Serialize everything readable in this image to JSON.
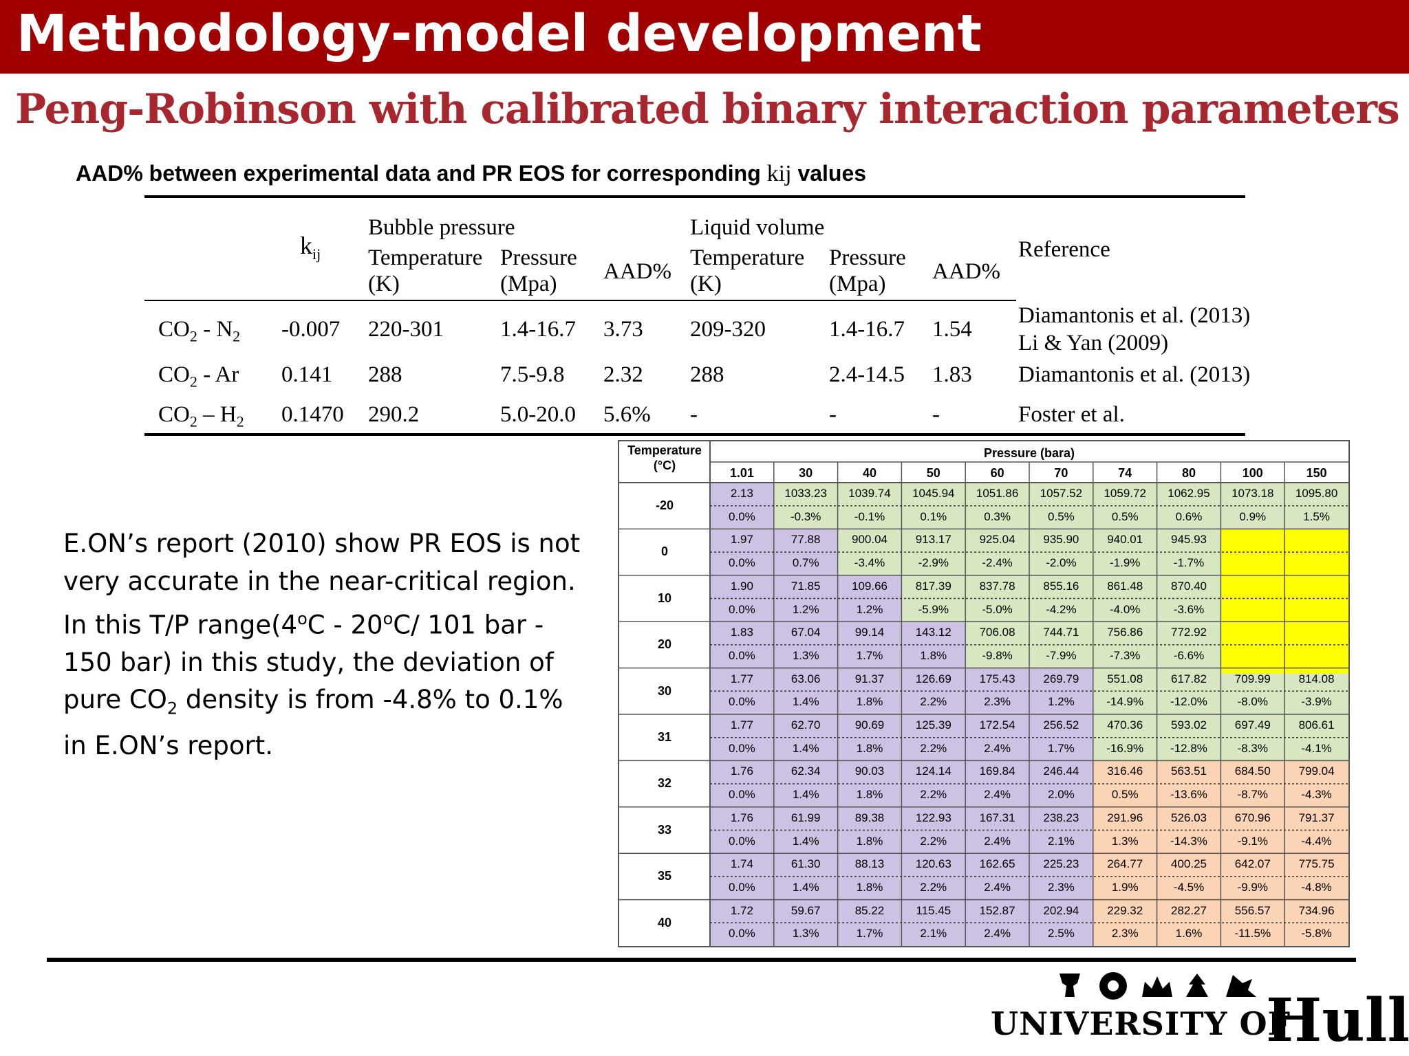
{
  "slide": {
    "title": "Methodology-model development",
    "subtitle": "Peng-Robinson with calibrated binary interaction parameters",
    "caption_prefix": "AAD% between experimental data and PR EOS for corresponding ",
    "caption_kij": "kij",
    "caption_suffix": " values"
  },
  "kij_table": {
    "col_kij": "k",
    "col_kij_sub": "ij",
    "group_bubble": "Bubble pressure",
    "group_liquid": "Liquid volume",
    "col_temp": "Temperature",
    "col_temp_unit": "(K)",
    "col_pres": "Pressure",
    "col_pres_unit": "(Mpa)",
    "col_aad": "AAD%",
    "col_ref": "Reference",
    "rows": [
      {
        "sys_a": "CO",
        "sys_a_sub": "2",
        "sys_sep": " - N",
        "sys_b_sub": "2",
        "kij": "-0.007",
        "bp_t": "220-301",
        "bp_p": "1.4-16.7",
        "bp_aad": "3.73",
        "lv_t": "209-320",
        "lv_p": "1.4-16.7",
        "lv_aad": "1.54",
        "ref1": "Diamantonis et al. (2013)",
        "ref2": "Li & Yan  (2009)"
      },
      {
        "sys_a": "CO",
        "sys_a_sub": "2",
        "sys_sep": " - Ar",
        "sys_b_sub": "",
        "kij": "0.141",
        "bp_t": "288",
        "bp_p": "7.5-9.8",
        "bp_aad": "2.32",
        "lv_t": "288",
        "lv_p": "2.4-14.5",
        "lv_aad": "1.83",
        "ref1": "Diamantonis et al. (2013)",
        "ref2": ""
      },
      {
        "sys_a": "CO",
        "sys_a_sub": "2",
        "sys_sep": " – H",
        "sys_b_sub": "2",
        "kij": "0.1470",
        "bp_t": "290.2",
        "bp_p": "5.0-20.0",
        "bp_aad": "5.6%",
        "lv_t": "-",
        "lv_p": "-",
        "lv_aad": "-",
        "ref1": "Foster et al.",
        "ref2": ""
      }
    ]
  },
  "pressure_table": {
    "temp_header": "Temperature",
    "temp_unit": "(°C)",
    "pressure_header": "Pressure (bara)",
    "pressures": [
      "1.01",
      "30",
      "40",
      "50",
      "60",
      "70",
      "74",
      "80",
      "100",
      "150"
    ],
    "colors": {
      "purple": "#cdc2e3",
      "green": "#d6e7c1",
      "orange": "#fbd3b5",
      "white": "#ffffff",
      "yellow": "#ffff00"
    },
    "rows": [
      {
        "t": "-20",
        "density": [
          "2.13",
          "1033.23",
          "1039.74",
          "1045.94",
          "1051.86",
          "1057.52",
          "1059.72",
          "1062.95",
          "1073.18",
          "1095.80"
        ],
        "dev": [
          "0.0%",
          "-0.3%",
          "-0.1%",
          "0.1%",
          "0.3%",
          "0.5%",
          "0.5%",
          "0.6%",
          "0.9%",
          "1.5%"
        ],
        "color": [
          "purple",
          "green",
          "green",
          "green",
          "green",
          "green",
          "green",
          "green",
          "green",
          "green"
        ]
      },
      {
        "t": "0",
        "density": [
          "1.97",
          "77.88",
          "900.04",
          "913.17",
          "925.04",
          "935.90",
          "940.01",
          "945.93",
          "",
          ""
        ],
        "dev": [
          "0.0%",
          "0.7%",
          "-3.4%",
          "-2.9%",
          "-2.4%",
          "-2.0%",
          "-1.9%",
          "-1.7%",
          "",
          ""
        ],
        "color": [
          "purple",
          "purple",
          "green",
          "green",
          "green",
          "green",
          "green",
          "green",
          "white",
          "white"
        ]
      },
      {
        "t": "10",
        "density": [
          "1.90",
          "71.85",
          "109.66",
          "817.39",
          "837.78",
          "855.16",
          "861.48",
          "870.40",
          "",
          ""
        ],
        "dev": [
          "0.0%",
          "1.2%",
          "1.2%",
          "-5.9%",
          "-5.0%",
          "-4.2%",
          "-4.0%",
          "-3.6%",
          "",
          ""
        ],
        "color": [
          "purple",
          "purple",
          "purple",
          "green",
          "green",
          "green",
          "green",
          "green",
          "white",
          "white"
        ]
      },
      {
        "t": "20",
        "density": [
          "1.83",
          "67.04",
          "99.14",
          "143.12",
          "706.08",
          "744.71",
          "756.86",
          "772.92",
          "",
          ""
        ],
        "dev": [
          "0.0%",
          "1.3%",
          "1.7%",
          "1.8%",
          "-9.8%",
          "-7.9%",
          "-7.3%",
          "-6.6%",
          "",
          ""
        ],
        "color": [
          "purple",
          "purple",
          "purple",
          "purple",
          "green",
          "green",
          "green",
          "green",
          "white",
          "white"
        ]
      },
      {
        "t": "30",
        "density": [
          "1.77",
          "63.06",
          "91.37",
          "126.69",
          "175.43",
          "269.79",
          "551.08",
          "617.82",
          "709.99",
          "814.08"
        ],
        "dev": [
          "0.0%",
          "1.4%",
          "1.8%",
          "2.2%",
          "2.3%",
          "1.2%",
          "-14.9%",
          "-12.0%",
          "-8.0%",
          "-3.9%"
        ],
        "color": [
          "purple",
          "purple",
          "purple",
          "purple",
          "purple",
          "purple",
          "green",
          "green",
          "green",
          "green"
        ]
      },
      {
        "t": "31",
        "density": [
          "1.77",
          "62.70",
          "90.69",
          "125.39",
          "172.54",
          "256.52",
          "470.36",
          "593.02",
          "697.49",
          "806.61"
        ],
        "dev": [
          "0.0%",
          "1.4%",
          "1.8%",
          "2.2%",
          "2.4%",
          "1.7%",
          "-16.9%",
          "-12.8%",
          "-8.3%",
          "-4.1%"
        ],
        "color": [
          "purple",
          "purple",
          "purple",
          "purple",
          "purple",
          "purple",
          "green",
          "green",
          "green",
          "green"
        ]
      },
      {
        "t": "32",
        "density": [
          "1.76",
          "62.34",
          "90.03",
          "124.14",
          "169.84",
          "246.44",
          "316.46",
          "563.51",
          "684.50",
          "799.04"
        ],
        "dev": [
          "0.0%",
          "1.4%",
          "1.8%",
          "2.2%",
          "2.4%",
          "2.0%",
          "0.5%",
          "-13.6%",
          "-8.7%",
          "-4.3%"
        ],
        "color": [
          "purple",
          "purple",
          "purple",
          "purple",
          "purple",
          "purple",
          "orange",
          "orange",
          "orange",
          "orange"
        ]
      },
      {
        "t": "33",
        "density": [
          "1.76",
          "61.99",
          "89.38",
          "122.93",
          "167.31",
          "238.23",
          "291.96",
          "526.03",
          "670.96",
          "791.37"
        ],
        "dev": [
          "0.0%",
          "1.4%",
          "1.8%",
          "2.2%",
          "2.4%",
          "2.1%",
          "1.3%",
          "-14.3%",
          "-9.1%",
          "-4.4%"
        ],
        "color": [
          "purple",
          "purple",
          "purple",
          "purple",
          "purple",
          "purple",
          "orange",
          "orange",
          "orange",
          "orange"
        ]
      },
      {
        "t": "35",
        "density": [
          "1.74",
          "61.30",
          "88.13",
          "120.63",
          "162.65",
          "225.23",
          "264.77",
          "400.25",
          "642.07",
          "775.75"
        ],
        "dev": [
          "0.0%",
          "1.4%",
          "1.8%",
          "2.2%",
          "2.4%",
          "2.3%",
          "1.9%",
          "-4.5%",
          "-9.9%",
          "-4.8%"
        ],
        "color": [
          "purple",
          "purple",
          "purple",
          "purple",
          "purple",
          "purple",
          "orange",
          "orange",
          "orange",
          "orange"
        ]
      },
      {
        "t": "40",
        "density": [
          "1.72",
          "59.67",
          "85.22",
          "115.45",
          "152.87",
          "202.94",
          "229.32",
          "282.27",
          "556.57",
          "734.96"
        ],
        "dev": [
          "0.0%",
          "1.3%",
          "1.7%",
          "2.1%",
          "2.4%",
          "2.5%",
          "2.3%",
          "1.6%",
          "-11.5%",
          "-5.8%"
        ],
        "color": [
          "purple",
          "purple",
          "purple",
          "purple",
          "purple",
          "purple",
          "orange",
          "orange",
          "orange",
          "orange"
        ]
      }
    ]
  },
  "body_text": {
    "line1": "E.ON’s report (2010) show PR EOS is not",
    "line2": "very accurate in the near-critical region.",
    "line3a": "In this T/P range(4",
    "line3_sup1": "o",
    "line3b": "C - 20",
    "line3_sup2": "o",
    "line3c": "C/ 101 bar -",
    "line4": "150 bar) in this study, the deviation of",
    "line5a": "pure CO",
    "line5_sub": "2",
    "line5b": " density is from -4.8% to 0.1%",
    "line6": "in E.ON’s report."
  },
  "logo": {
    "university": "UNIVERSITY OF",
    "hull": "Hull"
  }
}
